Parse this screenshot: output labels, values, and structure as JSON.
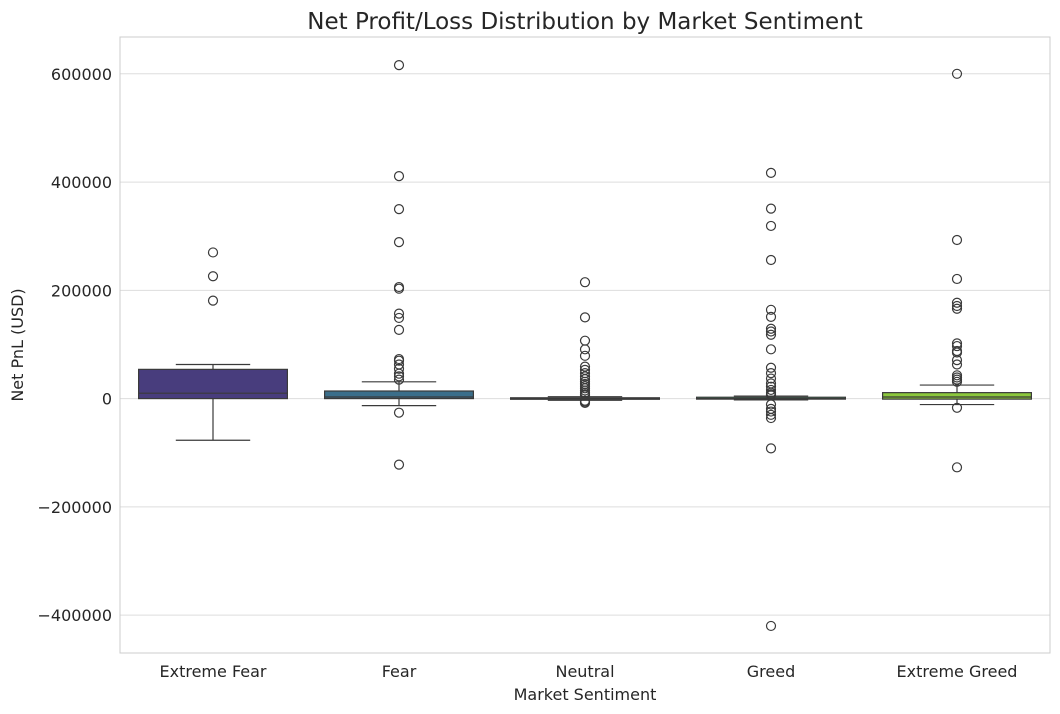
{
  "chart_data": {
    "type": "box",
    "title": "Net Profit/Loss Distribution by Market Sentiment",
    "xlabel": "Market Sentiment",
    "ylabel": "Net PnL (USD)",
    "ylim": [
      -470000,
      668000
    ],
    "yticks": [
      600000,
      400000,
      200000,
      0,
      -200000,
      -400000
    ],
    "ytick_labels": [
      "600000",
      "400000",
      "200000",
      "0",
      "−200000",
      "−400000"
    ],
    "grid": true,
    "categories": [
      "Extreme Fear",
      "Fear",
      "Neutral",
      "Greed",
      "Extreme Greed"
    ],
    "boxes": [
      {
        "category": "Extreme Fear",
        "color": "#483d7d",
        "q1": 0,
        "median": 10000,
        "q3": 54000,
        "whisker_low": -77000,
        "whisker_high": 63000,
        "outliers": [
          270000,
          226000,
          181000
        ]
      },
      {
        "category": "Fear",
        "color": "#3b6e8a",
        "q1": 0,
        "median": 3000,
        "q3": 14000,
        "whisker_low": -13000,
        "whisker_high": 31000,
        "outliers": [
          616000,
          411000,
          350000,
          289000,
          206000,
          203000,
          157000,
          149000,
          127000,
          73000,
          70000,
          63000,
          55000,
          46000,
          41000,
          35000,
          -26000,
          -122000
        ]
      },
      {
        "category": "Neutral",
        "color": "#2a9486",
        "q1": -1000,
        "median": 0,
        "q3": 1500,
        "whisker_low": -3000,
        "whisker_high": 3500,
        "outliers": [
          215000,
          150000,
          107000,
          91000,
          79000,
          59000,
          53000,
          47000,
          41000,
          36000,
          31000,
          27000,
          23000,
          19000,
          15000,
          11000,
          8000,
          6000,
          -4000,
          -6000,
          -8000
        ]
      },
      {
        "category": "Greed",
        "color": "#4aab74",
        "q1": -1000,
        "median": 0,
        "q3": 2500,
        "whisker_low": -2500,
        "whisker_high": 4500,
        "outliers": [
          417000,
          351000,
          319000,
          256000,
          164000,
          151000,
          129000,
          124000,
          118000,
          91000,
          57000,
          47000,
          37000,
          28000,
          22000,
          16000,
          11000,
          8000,
          6000,
          -11000,
          -19000,
          -24000,
          -30000,
          -36000,
          -92000,
          -420000
        ]
      },
      {
        "category": "Extreme Greed",
        "color": "#8cc83c",
        "q1": -1000,
        "median": 3000,
        "q3": 11000,
        "whisker_low": -11000,
        "whisker_high": 25000,
        "outliers": [
          600000,
          293000,
          221000,
          177000,
          171000,
          166000,
          102000,
          97000,
          88000,
          85000,
          71000,
          63000,
          43000,
          39000,
          35000,
          31000,
          -17000,
          -127000
        ]
      }
    ]
  }
}
